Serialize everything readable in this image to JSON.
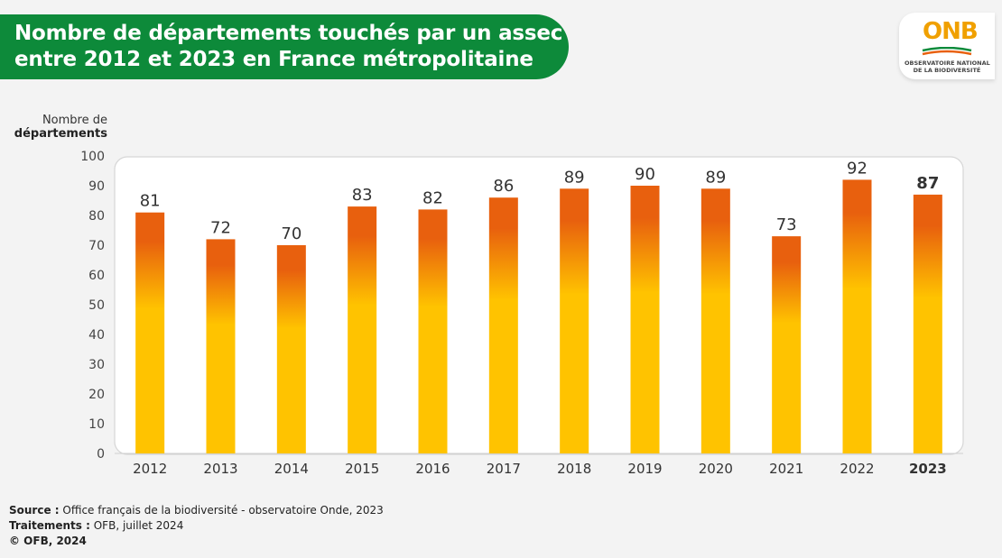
{
  "title": {
    "line1": "Nombre de départements touchés par un assec",
    "line2": "entre 2012 et 2023 en France métropolitaine"
  },
  "logo": {
    "name": "ONB",
    "subtitle_line1": "OBSERVATOIRE NATIONAL",
    "subtitle_line2": "DE LA BIODIVERSITÉ"
  },
  "chart_data": {
    "type": "bar",
    "ylabel_line1": "Nombre de",
    "ylabel_line2": "départements",
    "categories": [
      "2012",
      "2013",
      "2014",
      "2015",
      "2016",
      "2017",
      "2018",
      "2019",
      "2020",
      "2021",
      "2022",
      "2023"
    ],
    "values": [
      81,
      72,
      70,
      83,
      82,
      86,
      89,
      90,
      89,
      73,
      92,
      87
    ],
    "highlight_category": "2023",
    "ylim": [
      0,
      100
    ],
    "yticks": [
      0,
      10,
      20,
      30,
      40,
      50,
      60,
      70,
      80,
      90,
      100
    ],
    "grid": false,
    "colors": {
      "bar_bottom": "#ffc300",
      "bar_top": "#e8600e"
    }
  },
  "footer": {
    "source_label": "Source :",
    "source_text": " Office français de la biodiversité - observatoire Onde, 2023",
    "treatment_label": "Traitements :",
    "treatment_text": " OFB, juillet 2024",
    "copyright": "© OFB, 2024"
  },
  "colors": {
    "banner": "#0d8a3a",
    "background": "#f3f3f3"
  }
}
